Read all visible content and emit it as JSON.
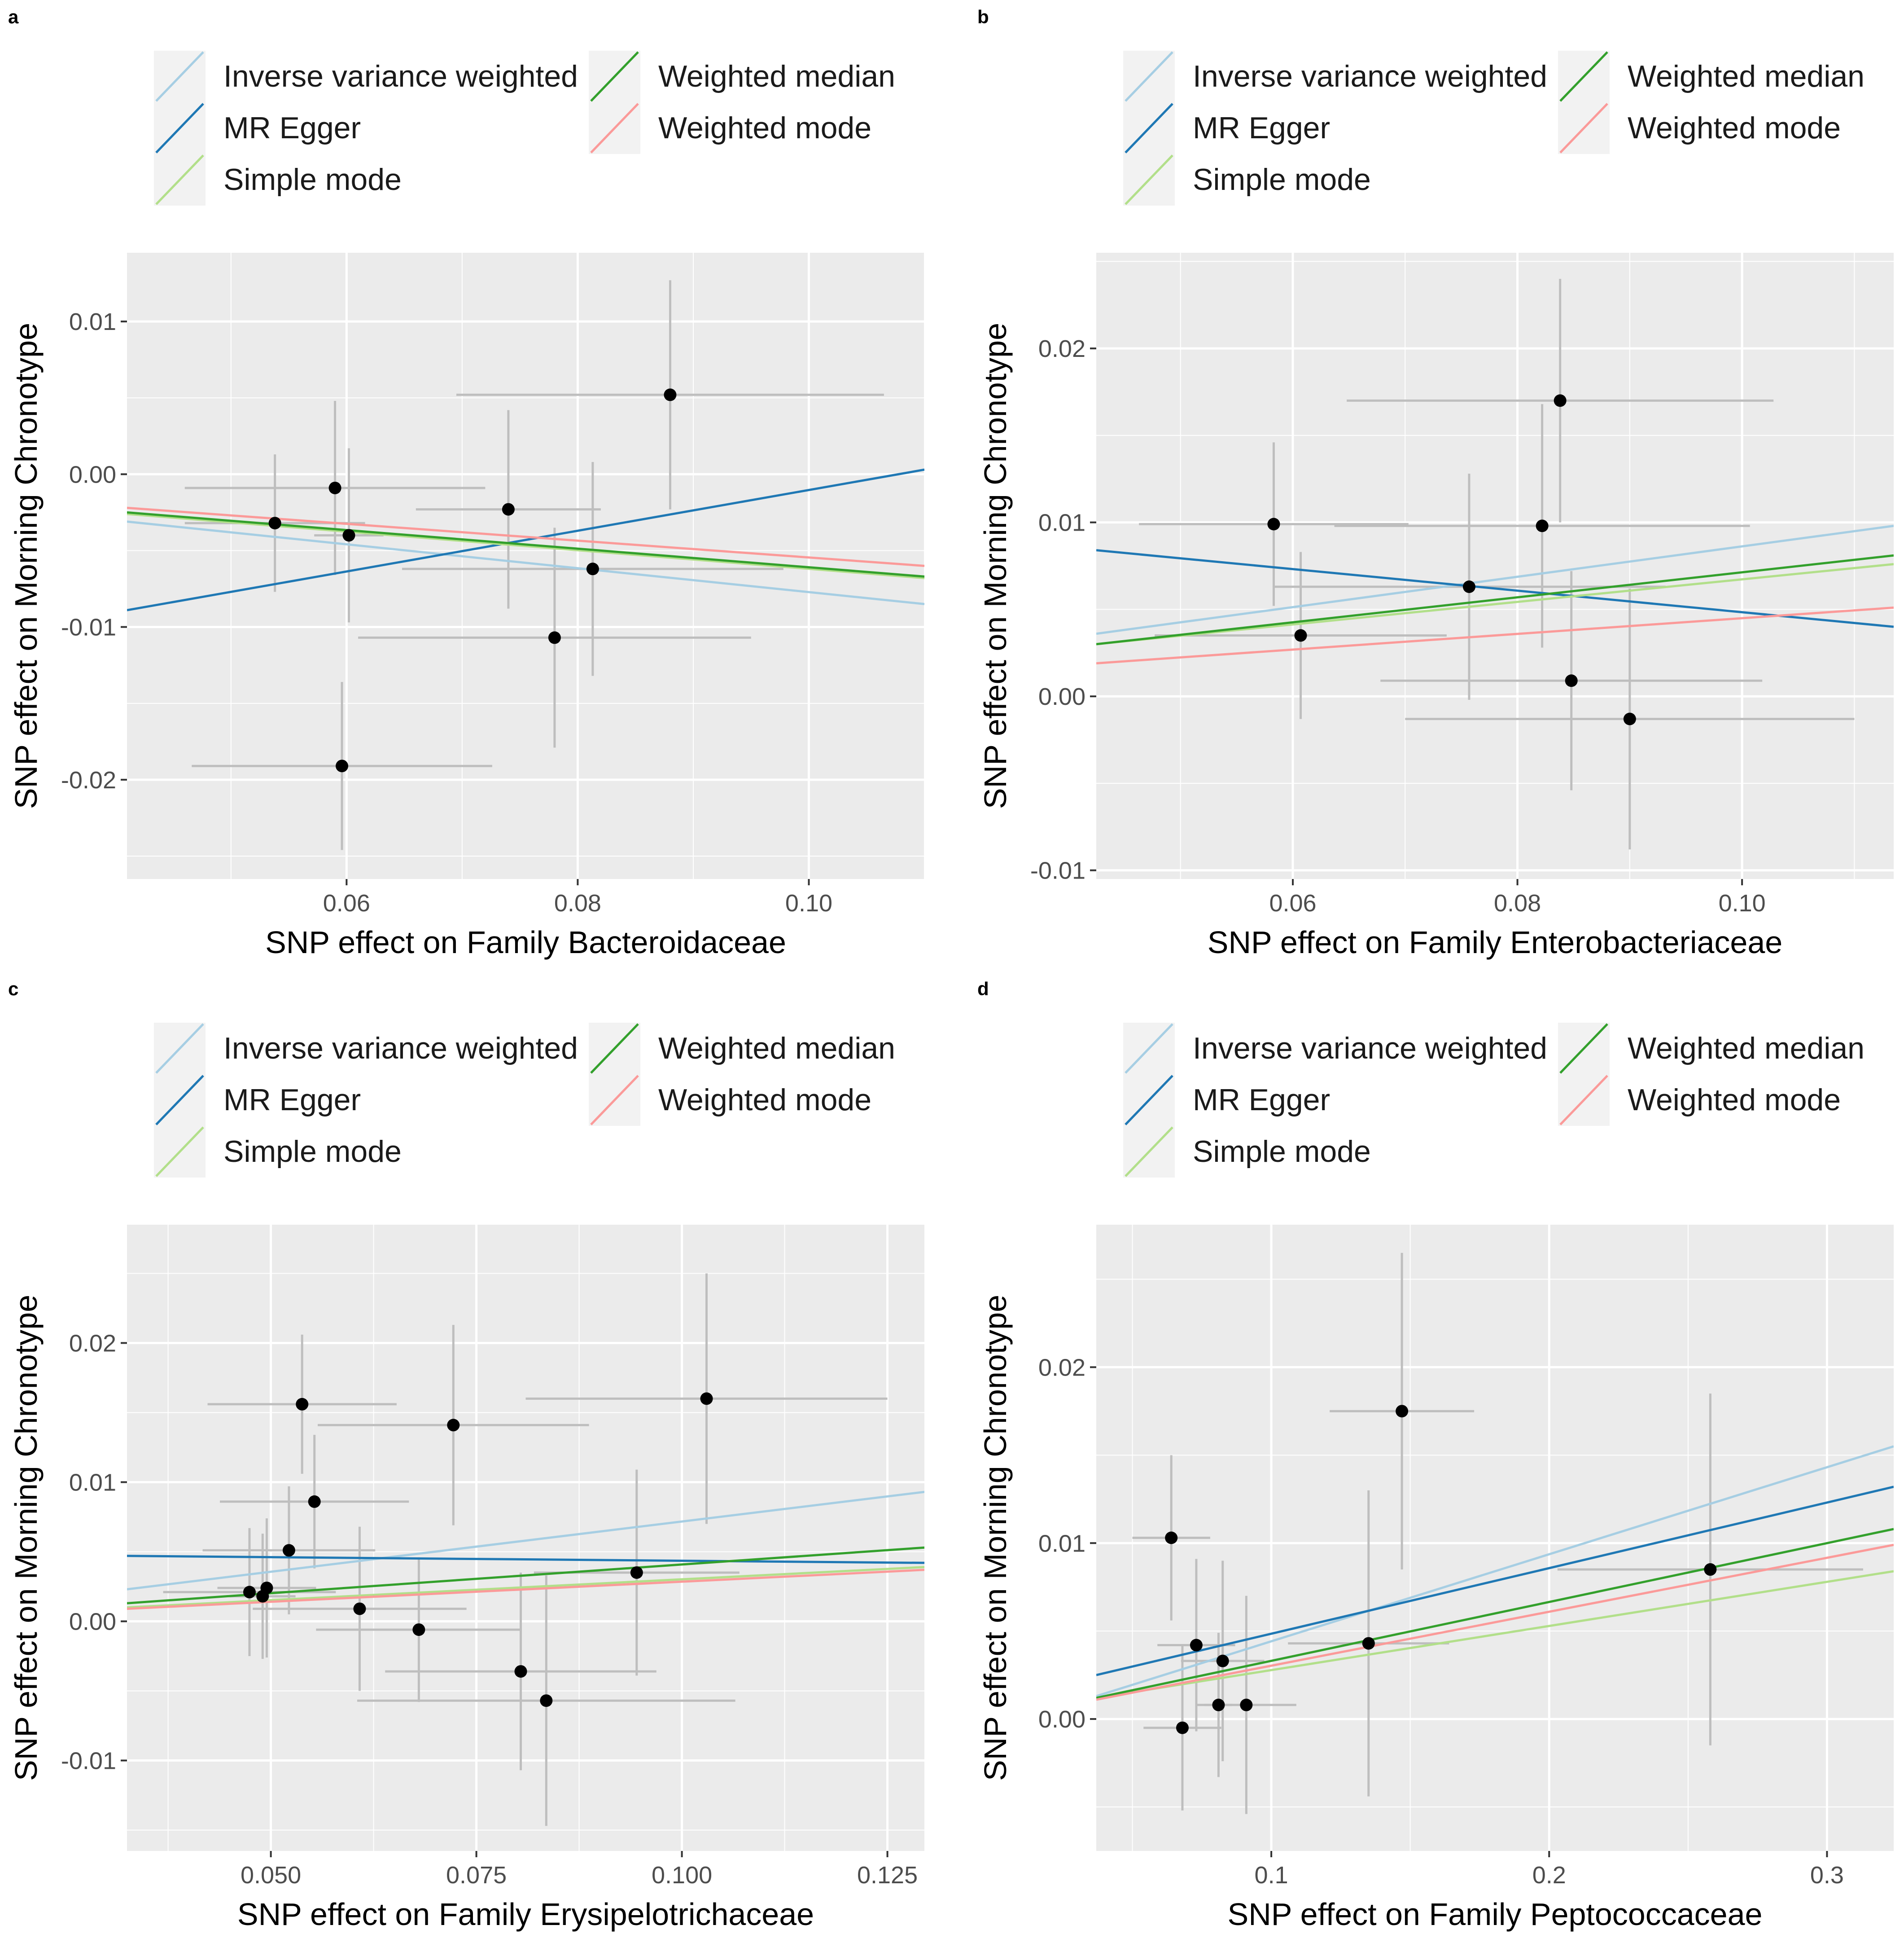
{
  "legend": {
    "items": [
      {
        "name": "Inverse variance weighted",
        "color": "#A6CEE3"
      },
      {
        "name": "MR Egger",
        "color": "#1F78B4"
      },
      {
        "name": "Simple mode",
        "color": "#B2DF8A"
      },
      {
        "name": "Weighted median",
        "color": "#33A02C"
      },
      {
        "name": "Weighted mode",
        "color": "#FB9A99"
      }
    ]
  },
  "colors": {
    "panel_background": "#EBEBEB",
    "grid": "#FFFFFF",
    "errorbar": "#BEBEBE",
    "point": "#000000"
  },
  "chart_data": [
    {
      "panel": "a",
      "type": "scatter",
      "xlabel": "SNP effect on Family Bacteroidaceae",
      "ylabel": "SNP effect on Morning Chronotype",
      "xlim": [
        0.041,
        0.11
      ],
      "ylim": [
        -0.0265,
        0.0145
      ],
      "xticks": [
        0.06,
        0.08,
        0.1
      ],
      "xtick_labels": [
        "0.06",
        "0.08",
        "0.10"
      ],
      "yticks": [
        -0.02,
        -0.01,
        0.0,
        0.01
      ],
      "ytick_labels": [
        "-0.02",
        "-0.01",
        "0.00",
        "0.01"
      ],
      "points": [
        {
          "x": 0.0538,
          "y": -0.0032,
          "xerr": 0.0078,
          "yerr": 0.0045
        },
        {
          "x": 0.059,
          "y": -0.0009,
          "xerr": 0.013,
          "yerr": 0.0057
        },
        {
          "x": 0.0596,
          "y": -0.0191,
          "xerr": 0.013,
          "yerr": 0.0055
        },
        {
          "x": 0.0602,
          "y": -0.004,
          "xerr": 0.003,
          "yerr": 0.0057
        },
        {
          "x": 0.074,
          "y": -0.0023,
          "xerr": 0.008,
          "yerr": 0.0065
        },
        {
          "x": 0.078,
          "y": -0.0107,
          "xerr": 0.017,
          "yerr": 0.0072
        },
        {
          "x": 0.0813,
          "y": -0.0062,
          "xerr": 0.0165,
          "yerr": 0.007
        },
        {
          "x": 0.088,
          "y": 0.0052,
          "xerr": 0.0185,
          "yerr": 0.0075
        }
      ],
      "lines": [
        {
          "method": "Inverse variance weighted",
          "x": [
            0.041,
            0.11
          ],
          "y": [
            -0.0031,
            -0.0085
          ]
        },
        {
          "method": "MR Egger",
          "x": [
            0.041,
            0.11
          ],
          "y": [
            -0.0089,
            0.0003
          ]
        },
        {
          "method": "Simple mode",
          "x": [
            0.041,
            0.11
          ],
          "y": [
            -0.0026,
            -0.0068
          ]
        },
        {
          "method": "Weighted median",
          "x": [
            0.041,
            0.11
          ],
          "y": [
            -0.0025,
            -0.0067
          ]
        },
        {
          "method": "Weighted mode",
          "x": [
            0.041,
            0.11
          ],
          "y": [
            -0.0022,
            -0.006
          ]
        }
      ]
    },
    {
      "panel": "b",
      "type": "scatter",
      "xlabel": "SNP effect on Family Enterobacteriaceae",
      "ylabel": "SNP effect on Morning Chronotype",
      "xlim": [
        0.0425,
        0.1135
      ],
      "ylim": [
        -0.0105,
        0.0255
      ],
      "xticks": [
        0.06,
        0.08,
        0.1
      ],
      "xtick_labels": [
        "0.06",
        "0.08",
        "0.10"
      ],
      "yticks": [
        -0.01,
        0.0,
        0.01,
        0.02
      ],
      "ytick_labels": [
        "-0.01",
        "0.00",
        "0.01",
        "0.02"
      ],
      "points": [
        {
          "x": 0.0583,
          "y": 0.0099,
          "xerr": 0.012,
          "yerr": 0.0047
        },
        {
          "x": 0.0607,
          "y": 0.0035,
          "xerr": 0.013,
          "yerr": 0.0048
        },
        {
          "x": 0.0757,
          "y": 0.0063,
          "xerr": 0.0175,
          "yerr": 0.0065
        },
        {
          "x": 0.0822,
          "y": 0.0098,
          "xerr": 0.0185,
          "yerr": 0.007
        },
        {
          "x": 0.0838,
          "y": 0.017,
          "xerr": 0.019,
          "yerr": 0.007
        },
        {
          "x": 0.0848,
          "y": 0.0009,
          "xerr": 0.017,
          "yerr": 0.0063
        },
        {
          "x": 0.09,
          "y": -0.0013,
          "xerr": 0.02,
          "yerr": 0.0075
        }
      ],
      "lines": [
        {
          "method": "Inverse variance weighted",
          "x": [
            0.0425,
            0.1135
          ],
          "y": [
            0.0036,
            0.0098
          ]
        },
        {
          "method": "MR Egger",
          "x": [
            0.0425,
            0.1135
          ],
          "y": [
            0.0084,
            0.004
          ]
        },
        {
          "method": "Simple mode",
          "x": [
            0.0425,
            0.1135
          ],
          "y": [
            0.003,
            0.0076
          ]
        },
        {
          "method": "Weighted median",
          "x": [
            0.0425,
            0.1135
          ],
          "y": [
            0.003,
            0.0081
          ]
        },
        {
          "method": "Weighted mode",
          "x": [
            0.0425,
            0.1135
          ],
          "y": [
            0.0019,
            0.0051
          ]
        }
      ]
    },
    {
      "panel": "c",
      "type": "scatter",
      "xlabel": "SNP effect on Family Erysipelotrichaceae",
      "ylabel": "SNP effect on Morning Chronotype",
      "xlim": [
        0.0325,
        0.1295
      ],
      "ylim": [
        -0.0165,
        0.0285
      ],
      "xticks": [
        0.05,
        0.075,
        0.1,
        0.125
      ],
      "xtick_labels": [
        "0.050",
        "0.075",
        "0.100",
        "0.125"
      ],
      "yticks": [
        -0.01,
        0.0,
        0.01,
        0.02
      ],
      "ytick_labels": [
        "-0.01",
        "0.00",
        "0.01",
        "0.02"
      ],
      "points": [
        {
          "x": 0.0474,
          "y": 0.0021,
          "xerr": 0.0105,
          "yerr": 0.0046
        },
        {
          "x": 0.049,
          "y": 0.0018,
          "xerr": 0.004,
          "yerr": 0.0045
        },
        {
          "x": 0.0495,
          "y": 0.0024,
          "xerr": 0.006,
          "yerr": 0.005
        },
        {
          "x": 0.0522,
          "y": 0.0051,
          "xerr": 0.0105,
          "yerr": 0.0046
        },
        {
          "x": 0.0538,
          "y": 0.0156,
          "xerr": 0.0115,
          "yerr": 0.005
        },
        {
          "x": 0.0553,
          "y": 0.0086,
          "xerr": 0.0115,
          "yerr": 0.0048
        },
        {
          "x": 0.0608,
          "y": 0.0009,
          "xerr": 0.013,
          "yerr": 0.0059
        },
        {
          "x": 0.068,
          "y": -0.0006,
          "xerr": 0.0125,
          "yerr": 0.0052
        },
        {
          "x": 0.0722,
          "y": 0.0141,
          "xerr": 0.0165,
          "yerr": 0.0072
        },
        {
          "x": 0.0804,
          "y": -0.0036,
          "xerr": 0.0165,
          "yerr": 0.0071
        },
        {
          "x": 0.0835,
          "y": -0.0057,
          "xerr": 0.023,
          "yerr": 0.009
        },
        {
          "x": 0.0945,
          "y": 0.0035,
          "xerr": 0.0125,
          "yerr": 0.0074
        },
        {
          "x": 0.103,
          "y": 0.016,
          "xerr": 0.022,
          "yerr": 0.009
        }
      ],
      "lines": [
        {
          "method": "Inverse variance weighted",
          "x": [
            0.0325,
            0.1295
          ],
          "y": [
            0.0023,
            0.0093
          ]
        },
        {
          "method": "MR Egger",
          "x": [
            0.0325,
            0.1295
          ],
          "y": [
            0.0047,
            0.0042
          ]
        },
        {
          "method": "Simple mode",
          "x": [
            0.0325,
            0.1295
          ],
          "y": [
            0.001,
            0.0039
          ]
        },
        {
          "method": "Weighted median",
          "x": [
            0.0325,
            0.1295
          ],
          "y": [
            0.0013,
            0.0053
          ]
        },
        {
          "method": "Weighted mode",
          "x": [
            0.0325,
            0.1295
          ],
          "y": [
            0.0009,
            0.0037
          ]
        }
      ]
    },
    {
      "panel": "d",
      "type": "scatter",
      "xlabel": "SNP effect on Family Peptococcaceae",
      "ylabel": "SNP effect on Morning Chronotype",
      "xlim": [
        0.037,
        0.324
      ],
      "ylim": [
        -0.0075,
        0.0281
      ],
      "xticks": [
        0.1,
        0.2,
        0.3
      ],
      "xtick_labels": [
        "0.1",
        "0.2",
        "0.3"
      ],
      "yticks": [
        0.0,
        0.01,
        0.02
      ],
      "ytick_labels": [
        "0.00",
        "0.01",
        "0.02"
      ],
      "points": [
        {
          "x": 0.064,
          "y": 0.0103,
          "xerr": 0.014,
          "yerr": 0.0047
        },
        {
          "x": 0.068,
          "y": -0.0005,
          "xerr": 0.014,
          "yerr": 0.0047
        },
        {
          "x": 0.073,
          "y": 0.0042,
          "xerr": 0.014,
          "yerr": 0.0049
        },
        {
          "x": 0.081,
          "y": 0.0008,
          "xerr": 0.005,
          "yerr": 0.0041
        },
        {
          "x": 0.0825,
          "y": 0.0033,
          "xerr": 0.015,
          "yerr": 0.0057
        },
        {
          "x": 0.091,
          "y": 0.0008,
          "xerr": 0.018,
          "yerr": 0.0062
        },
        {
          "x": 0.135,
          "y": 0.0043,
          "xerr": 0.029,
          "yerr": 0.0087
        },
        {
          "x": 0.147,
          "y": 0.0175,
          "xerr": 0.026,
          "yerr": 0.009
        },
        {
          "x": 0.258,
          "y": 0.0085,
          "xerr": 0.055,
          "yerr": 0.01
        }
      ],
      "lines": [
        {
          "method": "Inverse variance weighted",
          "x": [
            0.037,
            0.324
          ],
          "y": [
            0.0013,
            0.0155
          ]
        },
        {
          "method": "MR Egger",
          "x": [
            0.037,
            0.324
          ],
          "y": [
            0.0025,
            0.0132
          ]
        },
        {
          "method": "Simple mode",
          "x": [
            0.037,
            0.324
          ],
          "y": [
            0.0012,
            0.0084
          ]
        },
        {
          "method": "Weighted median",
          "x": [
            0.037,
            0.324
          ],
          "y": [
            0.0012,
            0.0108
          ]
        },
        {
          "method": "Weighted mode",
          "x": [
            0.037,
            0.324
          ],
          "y": [
            0.0011,
            0.0099
          ]
        }
      ]
    }
  ]
}
